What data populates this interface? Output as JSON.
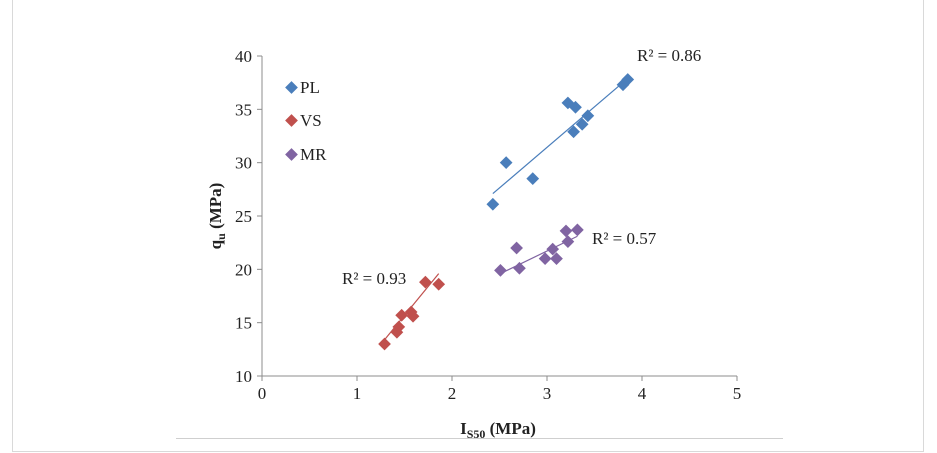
{
  "chart_data": {
    "type": "scatter",
    "xlabel": "IS50 (MPa)",
    "xlabel_main": "I",
    "xlabel_sub": "S50",
    "xlabel_rest": " (MPa)",
    "ylabel": "qu (MPa)",
    "ylabel_main": "q",
    "ylabel_sub": "u",
    "ylabel_rest": " (MPa)",
    "xlim": [
      0,
      5
    ],
    "ylim": [
      10,
      40
    ],
    "xticks": [
      "0",
      "1",
      "2",
      "3",
      "4",
      "5"
    ],
    "yticks": [
      "10",
      "15",
      "20",
      "25",
      "30",
      "35",
      "40"
    ],
    "legend_position": "top-left",
    "series": [
      {
        "name": "PL",
        "color": "#4a7ebb",
        "r2_label": "R² = 0.86",
        "trend": [
          [
            2.43,
            27.1
          ],
          [
            3.85,
            37.9
          ]
        ],
        "points": [
          [
            2.43,
            26.1
          ],
          [
            2.57,
            30.0
          ],
          [
            2.85,
            28.5
          ],
          [
            3.22,
            35.6
          ],
          [
            3.28,
            32.9
          ],
          [
            3.3,
            35.2
          ],
          [
            3.37,
            33.6
          ],
          [
            3.43,
            34.4
          ],
          [
            3.8,
            37.3
          ],
          [
            3.85,
            37.8
          ]
        ]
      },
      {
        "name": "VS",
        "color": "#c0504d",
        "r2_label": "R² = 0.93",
        "trend": [
          [
            1.29,
            13.4
          ],
          [
            1.86,
            19.6
          ]
        ],
        "points": [
          [
            1.29,
            13.0
          ],
          [
            1.42,
            14.1
          ],
          [
            1.44,
            14.6
          ],
          [
            1.47,
            15.7
          ],
          [
            1.57,
            16.0
          ],
          [
            1.59,
            15.6
          ],
          [
            1.72,
            18.8
          ],
          [
            1.86,
            18.6
          ]
        ]
      },
      {
        "name": "MR",
        "color": "#8064a2",
        "r2_label": "R² = 0.57",
        "trend": [
          [
            2.51,
            19.6
          ],
          [
            3.32,
            23.1
          ]
        ],
        "points": [
          [
            2.51,
            19.9
          ],
          [
            2.68,
            22.0
          ],
          [
            2.71,
            20.1
          ],
          [
            2.98,
            21.0
          ],
          [
            3.06,
            21.9
          ],
          [
            3.1,
            21.0
          ],
          [
            3.2,
            23.6
          ],
          [
            3.22,
            22.6
          ],
          [
            3.32,
            23.7
          ]
        ]
      }
    ]
  }
}
